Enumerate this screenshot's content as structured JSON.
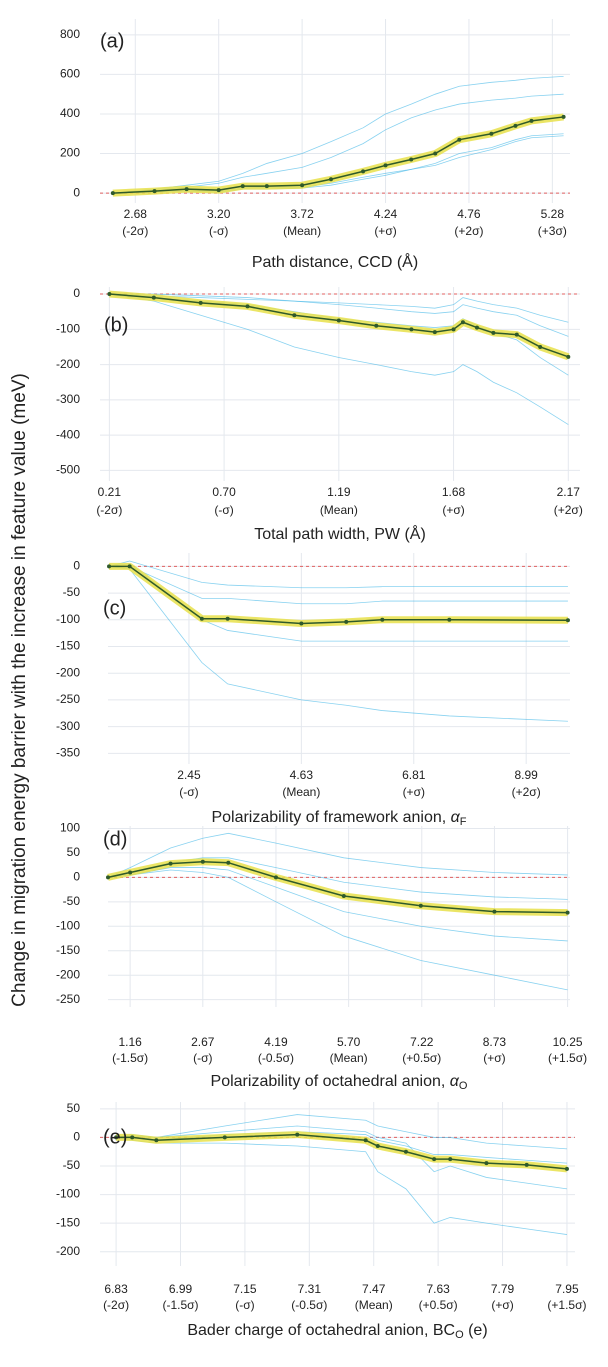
{
  "ylabel": "Change in migration energy barrier with the increase in feature value (meV)",
  "chart_data": [
    {
      "type": "line",
      "label": "(a)",
      "xlabel": "Path distance, CCD (Å)",
      "x": [
        2.54,
        2.8,
        3.0,
        3.2,
        3.35,
        3.5,
        3.72,
        3.9,
        4.1,
        4.24,
        4.4,
        4.55,
        4.7,
        4.9,
        5.05,
        5.15,
        5.35
      ],
      "mean": [
        0,
        10,
        20,
        15,
        35,
        35,
        40,
        70,
        110,
        140,
        170,
        200,
        270,
        300,
        340,
        365,
        385
      ],
      "ice": [
        [
          0,
          20,
          40,
          60,
          100,
          150,
          200,
          260,
          330,
          400,
          450,
          500,
          540,
          560,
          570,
          580,
          590
        ],
        [
          0,
          5,
          10,
          5,
          20,
          20,
          25,
          40,
          70,
          90,
          120,
          150,
          200,
          230,
          270,
          290,
          300
        ],
        [
          0,
          15,
          30,
          50,
          80,
          100,
          130,
          180,
          250,
          320,
          380,
          420,
          450,
          470,
          480,
          490,
          500
        ],
        [
          0,
          10,
          15,
          10,
          25,
          30,
          30,
          50,
          80,
          100,
          120,
          140,
          180,
          220,
          260,
          280,
          290
        ]
      ],
      "ice_color": "#3ab4e6",
      "mean_color": "#2f5a2a",
      "band_color": "#e8e04a",
      "ref_color": "#e06060",
      "ref_line": 0,
      "xlim": [
        2.46,
        5.39
      ],
      "ylim": [
        -50,
        880
      ],
      "yticks": [
        0,
        200,
        400,
        600,
        800
      ],
      "xticks": [
        {
          "value": 2.68,
          "label": "2.68"
        },
        {
          "value": 3.2,
          "label": "3.20"
        },
        {
          "value": 3.72,
          "label": "3.72"
        },
        {
          "value": 4.24,
          "label": "4.24"
        },
        {
          "value": 4.76,
          "label": "4.76"
        },
        {
          "value": 5.28,
          "label": "5.28"
        }
      ],
      "xtick_sublabels": [
        "(-2σ)",
        "(-σ)",
        "(Mean)",
        "(+σ)",
        "(+2σ)",
        "(+3σ)"
      ],
      "grid": true
    },
    {
      "type": "line",
      "label": "(b)",
      "xlabel": "Total path width, PW (Å)",
      "x": [
        0.21,
        0.4,
        0.6,
        0.8,
        1.0,
        1.19,
        1.35,
        1.5,
        1.6,
        1.68,
        1.72,
        1.78,
        1.85,
        1.95,
        2.05,
        2.17
      ],
      "mean": [
        0,
        -10,
        -25,
        -35,
        -60,
        -75,
        -90,
        -100,
        -108,
        -100,
        -80,
        -95,
        -110,
        -115,
        -150,
        -178
      ],
      "ice": [
        [
          0,
          -5,
          -10,
          -15,
          -20,
          -25,
          -30,
          -35,
          -40,
          -30,
          -10,
          -20,
          -30,
          -40,
          -60,
          -80
        ],
        [
          0,
          -20,
          -60,
          -100,
          -150,
          -180,
          -200,
          -220,
          -230,
          -220,
          -200,
          -220,
          -250,
          -280,
          -320,
          -370
        ],
        [
          0,
          -10,
          -20,
          -30,
          -50,
          -70,
          -80,
          -90,
          -95,
          -90,
          -70,
          -90,
          -110,
          -130,
          -180,
          -230
        ],
        [
          0,
          0,
          -5,
          -10,
          -20,
          -30,
          -40,
          -50,
          -55,
          -50,
          -30,
          -40,
          -50,
          -60,
          -90,
          -120
        ]
      ],
      "ice_color": "#3ab4e6",
      "mean_color": "#2f5a2a",
      "band_color": "#e8e04a",
      "ref_color": "#e06060",
      "ref_line": 0,
      "xlim": [
        0.17,
        2.22
      ],
      "ylim": [
        -530,
        20
      ],
      "yticks": [
        -500,
        -400,
        -300,
        -200,
        -100,
        0
      ],
      "xticks": [
        {
          "value": 0.21,
          "label": "0.21"
        },
        {
          "value": 0.7,
          "label": "0.70"
        },
        {
          "value": 1.19,
          "label": "1.19"
        },
        {
          "value": 1.68,
          "label": "1.68"
        },
        {
          "value": 2.17,
          "label": "2.17"
        }
      ],
      "xtick_sublabels": [
        "(-2σ)",
        "(-σ)",
        "(Mean)",
        "(+σ)",
        "(+2σ)"
      ],
      "grid": true
    },
    {
      "type": "line",
      "label": "(c)",
      "xlabel": "Polarizability of framework anion, ",
      "xlabel_symbol": "α",
      "xlabel_sub": "F",
      "x": [
        0.9,
        1.3,
        2.7,
        3.2,
        4.63,
        5.5,
        6.2,
        7.5,
        9.8
      ],
      "mean": [
        0,
        0,
        -98,
        -98,
        -107,
        -104,
        -100,
        -100,
        -101
      ],
      "ice": [
        [
          0,
          10,
          -30,
          -35,
          -40,
          -40,
          -38,
          -38,
          -38
        ],
        [
          0,
          -5,
          -180,
          -220,
          -250,
          -260,
          -270,
          -280,
          -290
        ],
        [
          0,
          5,
          -100,
          -120,
          -140,
          -140,
          -140,
          -140,
          -140
        ],
        [
          0,
          0,
          -60,
          -60,
          -70,
          -70,
          -65,
          -65,
          -65
        ]
      ],
      "ice_color": "#3ab4e6",
      "mean_color": "#2f5a2a",
      "band_color": "#e8e04a",
      "ref_color": "#e06060",
      "ref_line": 0,
      "xlim": [
        0.88,
        9.84
      ],
      "ylim": [
        -370,
        25
      ],
      "yticks": [
        -350,
        -300,
        -250,
        -200,
        -150,
        -100,
        -50,
        0
      ],
      "xticks": [
        2.45,
        4.63,
        6.81,
        8.99
      ],
      "xtick_sublabels": [
        "(-σ)",
        "(Mean)",
        "(+σ)",
        "(+2σ)"
      ],
      "grid": true
    },
    {
      "type": "line",
      "label": "(d)",
      "xlabel": "Polarizability of octahedral anion, ",
      "xlabel_symbol": "α",
      "xlabel_sub": "O",
      "x": [
        0.7,
        1.16,
        2.0,
        2.67,
        3.2,
        4.19,
        5.6,
        7.2,
        8.73,
        10.25
      ],
      "mean": [
        0,
        10,
        28,
        32,
        30,
        0,
        -38,
        -58,
        -70,
        -72
      ],
      "ice": [
        [
          0,
          20,
          60,
          80,
          90,
          70,
          40,
          20,
          10,
          5
        ],
        [
          0,
          5,
          15,
          10,
          0,
          -50,
          -120,
          -170,
          -200,
          -230
        ],
        [
          0,
          10,
          30,
          40,
          40,
          20,
          -10,
          -30,
          -40,
          -45
        ],
        [
          0,
          5,
          20,
          20,
          15,
          -20,
          -70,
          -100,
          -120,
          -130
        ]
      ],
      "ice_color": "#3ab4e6",
      "mean_color": "#2f5a2a",
      "band_color": "#e8e04a",
      "ref_color": "#e06060",
      "ref_line": 0,
      "xlim": [
        0.7,
        10.3
      ],
      "ylim": [
        -265,
        105
      ],
      "yticks": [
        -250,
        -200,
        -150,
        -100,
        -50,
        0,
        50,
        100
      ],
      "xticks": [
        1.16,
        2.67,
        4.19,
        {
          "value": 5.7,
          "label": "5.70"
        },
        7.22,
        8.73,
        10.25
      ],
      "xtick_sublabels": [
        "(-1.5σ)",
        "(-σ)",
        "(-0.5σ)",
        "(Mean)",
        "(+0.5σ)",
        "(+σ)",
        "(+1.5σ)"
      ],
      "grid": true
    },
    {
      "type": "line",
      "label": "(e)",
      "xlabel": "Bader charge of octahedral anion, BC",
      "xlabel_sub": "O",
      "xlabel_tail": " (e)",
      "x": [
        6.83,
        6.87,
        6.93,
        7.1,
        7.28,
        7.45,
        7.48,
        7.55,
        7.62,
        7.66,
        7.75,
        7.85,
        7.95
      ],
      "mean": [
        0,
        0,
        -5,
        0,
        5,
        -5,
        -15,
        -25,
        -38,
        -38,
        -45,
        -48,
        -55
      ],
      "ice": [
        [
          0,
          5,
          0,
          20,
          40,
          30,
          20,
          10,
          0,
          0,
          -10,
          -15,
          -20
        ],
        [
          0,
          -5,
          -10,
          -10,
          -15,
          -25,
          -60,
          -90,
          -150,
          -140,
          -150,
          -160,
          -170
        ],
        [
          0,
          0,
          -5,
          5,
          10,
          5,
          -5,
          -15,
          -30,
          -30,
          -35,
          -40,
          -45
        ],
        [
          0,
          2,
          0,
          10,
          20,
          10,
          0,
          -10,
          -60,
          -50,
          -70,
          -80,
          -90
        ]
      ],
      "ice_color": "#3ab4e6",
      "mean_color": "#2f5a2a",
      "band_color": "#e8e04a",
      "ref_color": "#e06060",
      "ref_line": 0,
      "xlim": [
        6.79,
        7.97
      ],
      "ylim": [
        -225,
        62
      ],
      "yticks": [
        -200,
        -150,
        -100,
        -50,
        0,
        50
      ],
      "xticks": [
        6.83,
        6.99,
        7.15,
        7.31,
        7.47,
        7.63,
        7.79,
        7.95
      ],
      "xtick_sublabels": [
        "(-2σ)",
        "(-1.5σ)",
        "(-σ)",
        "(-0.5σ)",
        "(Mean)",
        "(+0.5σ)",
        "(+σ)",
        "(+1.5σ)"
      ],
      "grid": true
    }
  ]
}
